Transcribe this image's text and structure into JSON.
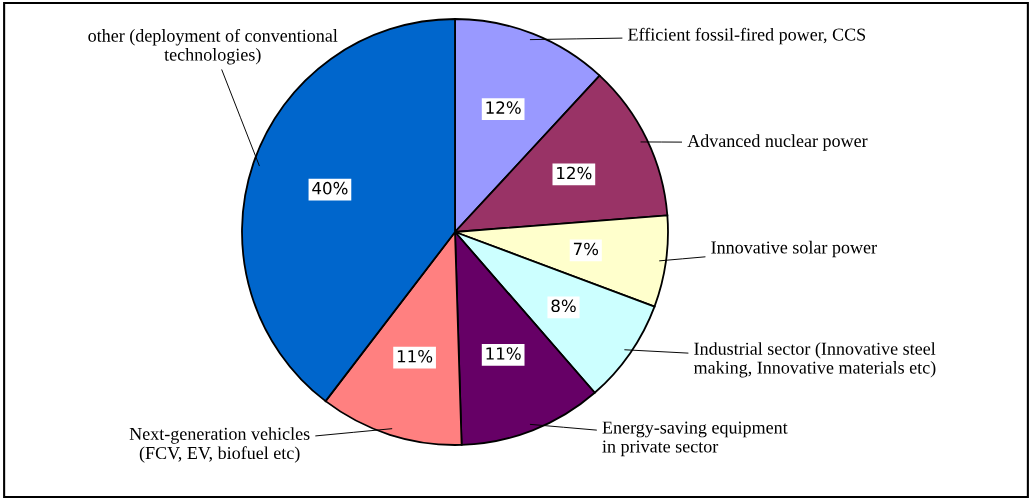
{
  "chart_data": {
    "type": "pie",
    "categories": [
      "Efficient fossil-fired power, CCS",
      "Advanced nuclear power",
      "Innovative solar power",
      "Industrial sector (Innovative steel\nmaking, Innovative materials etc)",
      "Energy-saving equipment\nin private sector",
      "Next-generation vehicles\n(FCV, EV, biofuel etc)",
      "other (deployment of conventional\ntechnologies)"
    ],
    "values": [
      12,
      12,
      7,
      8,
      11,
      11,
      40
    ],
    "value_labels": [
      "12%",
      "12%",
      "7%",
      "8%",
      "11%",
      "11%",
      "40%"
    ],
    "colors": [
      "#9999ff",
      "#993366",
      "#ffffcc",
      "#ccffff",
      "#660066",
      "#ff8080",
      "#0066cc"
    ],
    "legend": false
  }
}
